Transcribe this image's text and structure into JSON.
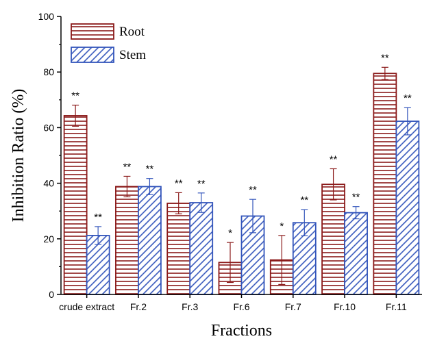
{
  "colors": {
    "root": "#8b1a1a",
    "stem": "#3355bb",
    "axis": "#000000",
    "background": "#ffffff"
  },
  "chart_data": {
    "type": "bar",
    "xlabel": "Fractions",
    "ylabel": "Inhibition Ratio (%)",
    "ylim": [
      0,
      100
    ],
    "yticks": [
      0,
      20,
      40,
      60,
      80,
      100
    ],
    "grid": false,
    "legend_position": "top-left",
    "categories": [
      "crude extract",
      "Fr.2",
      "Fr.3",
      "Fr.6",
      "Fr.7",
      "Fr.10",
      "Fr.11"
    ],
    "series": [
      {
        "name": "Root",
        "pattern": "horizontal-lines",
        "values": [
          64.3,
          38.8,
          32.8,
          11.5,
          12.4,
          39.6,
          79.5
        ],
        "errors": [
          3.8,
          3.7,
          3.8,
          7.2,
          8.8,
          5.6,
          2.2
        ],
        "significance": [
          "**",
          "**",
          "**",
          "*",
          "*",
          "**",
          "**"
        ]
      },
      {
        "name": "Stem",
        "pattern": "diagonal-lines",
        "values": [
          21.2,
          38.8,
          33.0,
          28.2,
          25.8,
          29.4,
          62.3
        ],
        "errors": [
          3.2,
          2.9,
          3.5,
          6.0,
          4.7,
          2.2,
          4.9
        ],
        "significance": [
          "**",
          "**",
          "**",
          "**",
          "**",
          "**",
          "**"
        ]
      }
    ]
  }
}
